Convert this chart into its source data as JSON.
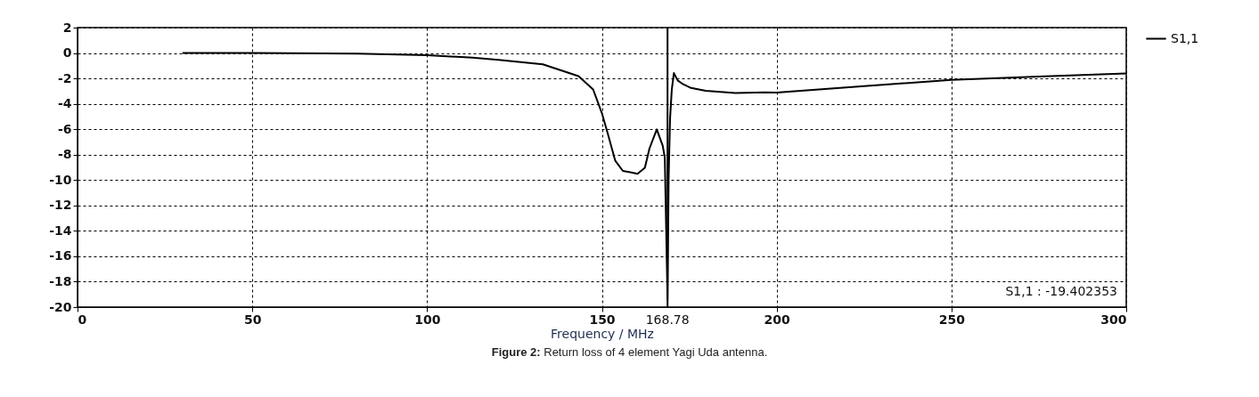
{
  "chart_data": {
    "type": "line",
    "xlabel": "Frequency / MHz",
    "xlim": [
      0,
      300
    ],
    "xticks": [
      0,
      50,
      100,
      150,
      200,
      250,
      300
    ],
    "ylim": [
      -20,
      2
    ],
    "yticks": [
      2,
      0,
      -2,
      -4,
      -6,
      -8,
      -10,
      -12,
      -14,
      -16,
      -18,
      -20
    ],
    "grid": true,
    "legend": "top right",
    "marker": "none",
    "line_style": "solid",
    "series": [
      {
        "name": "S1,1",
        "color": "#000000",
        "x": [
          30,
          50,
          80,
          100,
          113,
          120.4,
          133.1,
          143.3,
          147.5,
          150.0,
          151.7,
          153.8,
          156.0,
          158.1,
          160.2,
          162.3,
          163.6,
          165.7,
          167.4,
          168.0,
          168.78,
          169.1,
          169.5,
          170.0,
          170.6,
          171.7,
          172.9,
          175.5,
          179.7,
          188.2,
          196.7,
          200,
          225,
          250,
          275,
          300
        ],
        "values": [
          0,
          0,
          -0.05,
          -0.17,
          -0.37,
          -0.54,
          -0.89,
          -1.82,
          -2.87,
          -4.73,
          -6.36,
          -8.46,
          -9.28,
          -9.39,
          -9.51,
          -9.04,
          -7.53,
          -6.01,
          -7.29,
          -8.23,
          -19.4,
          -9.86,
          -5.17,
          -2.87,
          -1.58,
          -2.16,
          -2.4,
          -2.75,
          -2.98,
          -3.15,
          -3.1,
          -3.12,
          -2.6,
          -2.12,
          -1.85,
          -1.61
        ]
      }
    ],
    "ref_lines": [
      {
        "axis": "x",
        "value": 168.78,
        "label": "168.78",
        "color": "#000000",
        "line_style": "solid"
      }
    ],
    "annotations": [
      "S1,1 : -19.402353",
      "Figure 2: Return loss of 4 element Yagi Uda antenna."
    ]
  }
}
